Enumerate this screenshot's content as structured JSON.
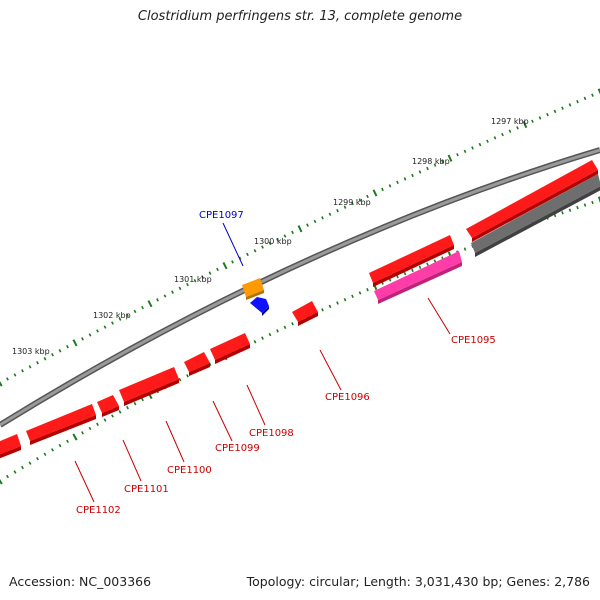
{
  "title": "Clostridium perfringens str. 13, complete genome",
  "footer": {
    "accession": "Accession: NC_003366",
    "topology": "Topology: circular; Length: 3,031,430 bp; Genes: 2,786"
  },
  "colors": {
    "backbone": "#808080",
    "ticks": "#1e7a1e",
    "forward_gene": "#ff1a1a",
    "reverse_gene": "#ff1a1a",
    "rna_gene": "#ff3ca8",
    "pseudo_gene": "#6e6e6e",
    "orange_feature": "#ff9a00",
    "blue_feature": "#1010ff",
    "label_red": "#cc0000",
    "label_blue": "#0000cc"
  },
  "kbp_labels": [
    "1297 kbp",
    "1298 kbp",
    "1299 kbp",
    "1300 kbp",
    "1301 kbp",
    "1302 kbp",
    "1303 kbp"
  ],
  "gene_labels": [
    "CPE1095",
    "CPE1096",
    "CPE1097",
    "CPE1098",
    "CPE1099",
    "CPE1100",
    "CPE1101",
    "CPE1102"
  ]
}
